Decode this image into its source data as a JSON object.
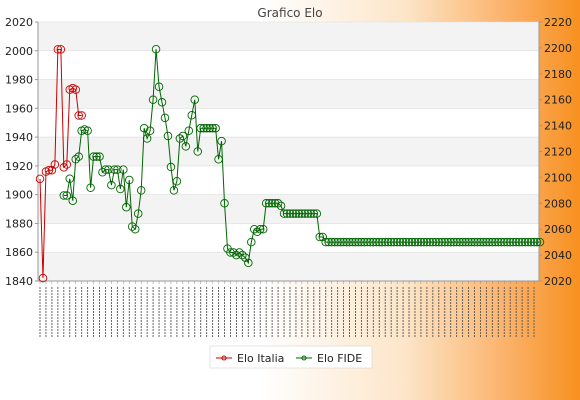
{
  "chart_data": {
    "type": "line",
    "title": "Grafico Elo",
    "ylim_left": [
      1840,
      2020
    ],
    "ylim_right": [
      2020,
      2220
    ],
    "yticks_left": [
      1840,
      1860,
      1880,
      1900,
      1920,
      1940,
      1960,
      1980,
      2000,
      2020
    ],
    "yticks_right": [
      2020,
      2040,
      2060,
      2080,
      2100,
      2120,
      2140,
      2160,
      2180,
      2200,
      2220
    ],
    "grid": true,
    "legend_position": "bottom",
    "series": [
      {
        "name": "Elo Italia",
        "axis": "left",
        "color": "#cc0000",
        "values": [
          1911,
          1842,
          1916,
          1917,
          1917,
          1921,
          2001,
          2001,
          1919,
          1921,
          1973,
          1974,
          1973,
          1955,
          1955
        ]
      },
      {
        "name": "Elo FIDE",
        "axis": "right",
        "color": "#006600",
        "values": [
          null,
          null,
          null,
          null,
          null,
          null,
          null,
          null,
          2086,
          2086,
          2099,
          2082,
          2114,
          2116,
          2136,
          2137,
          2136,
          2092,
          2116,
          2116,
          2116,
          2104,
          2106,
          2106,
          2094,
          2106,
          2106,
          2091,
          2106,
          2077,
          2098,
          2062,
          2060,
          2072,
          2090,
          2138,
          2130,
          2136,
          2160,
          2199,
          2170,
          2158,
          2146,
          2132,
          2108,
          2090,
          2097,
          2130,
          2132,
          2124,
          2136,
          2148,
          2160,
          2120,
          2138,
          2138,
          2138,
          2138,
          2138,
          2138,
          2114,
          2128,
          2080,
          2045,
          2042,
          2042,
          2040,
          2042,
          2040,
          2038,
          2034,
          2050,
          2060,
          2058,
          2060,
          2060,
          2080,
          2080,
          2080,
          2080,
          2080,
          2078,
          2072,
          2072,
          2072,
          2072,
          2072,
          2072,
          2072,
          2072,
          2072,
          2072,
          2072,
          2072,
          2054,
          2054,
          2050,
          2050,
          2050,
          2050,
          2050,
          2050,
          2050,
          2050,
          2050,
          2050,
          2050,
          2050,
          2050,
          2050,
          2050,
          2050,
          2050,
          2050,
          2050,
          2050,
          2050,
          2050,
          2050,
          2050,
          2050,
          2050,
          2050,
          2050,
          2050,
          2050,
          2050,
          2050,
          2050,
          2050,
          2050,
          2050,
          2050,
          2050,
          2050,
          2050,
          2050,
          2050,
          2050,
          2050,
          2050,
          2050,
          2050,
          2050,
          2050,
          2050,
          2050,
          2050,
          2050,
          2050,
          2050,
          2050,
          2050,
          2050,
          2050,
          2050,
          2050,
          2050,
          2050,
          2050,
          2050,
          2050,
          2050,
          2050,
          2050,
          2050,
          2050,
          2050,
          2050
        ]
      }
    ],
    "x_label_count": 168
  },
  "legend": {
    "italia_label": "Elo Italia",
    "fide_label": "Elo FIDE"
  }
}
